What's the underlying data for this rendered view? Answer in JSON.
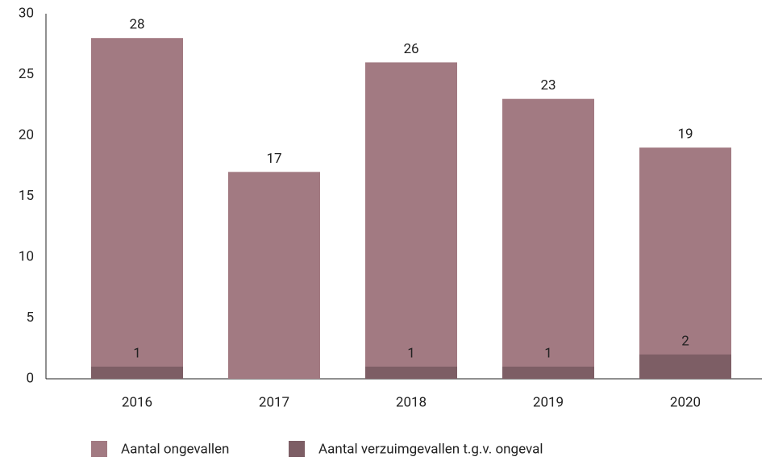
{
  "chart_data": {
    "type": "bar",
    "categories": [
      "2016",
      "2017",
      "2018",
      "2019",
      "2020"
    ],
    "series": [
      {
        "name": "Aantal ongevallen",
        "color": "#a27a82",
        "values": [
          28,
          17,
          26,
          23,
          19
        ]
      },
      {
        "name": "Aantal verzuimgevallen t.g.v. ongeval",
        "color": "#7d5e65",
        "values": [
          1,
          null,
          1,
          1,
          2
        ]
      }
    ],
    "ylim": [
      0,
      30
    ],
    "yticks": [
      0,
      5,
      10,
      15,
      20,
      25,
      30
    ],
    "grid": false,
    "legend": "bottom"
  }
}
